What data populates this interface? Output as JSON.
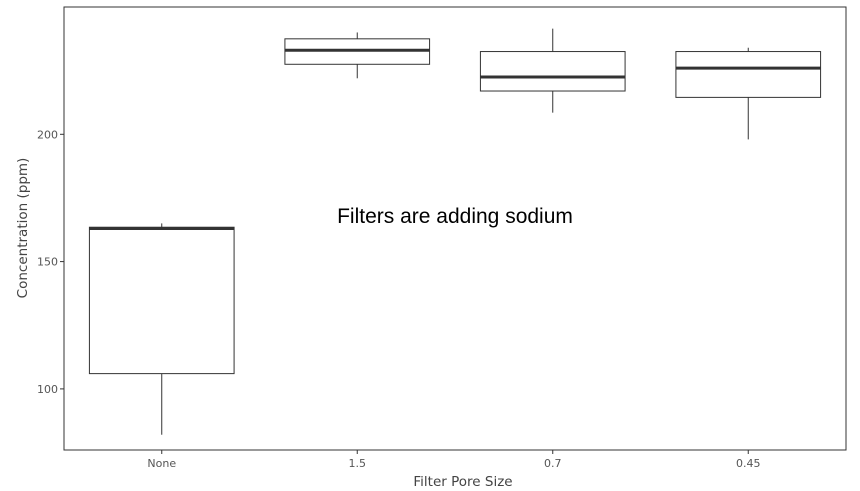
{
  "chart_data": {
    "type": "boxplot",
    "title": "",
    "xlabel": "Filter Pore Size",
    "ylabel": "Concentration (ppm)",
    "categories": [
      "None",
      "1.5",
      "0.7",
      "0.45"
    ],
    "boxes": [
      {
        "category": "None",
        "whisker_low": 82,
        "q1": 106,
        "median": 163,
        "q3": 163.5,
        "whisker_high": 165
      },
      {
        "category": "1.5",
        "whisker_low": 222,
        "q1": 227.5,
        "median": 233,
        "q3": 237.5,
        "whisker_high": 240
      },
      {
        "category": "0.7",
        "whisker_low": 208.5,
        "q1": 217,
        "median": 222.5,
        "q3": 232.5,
        "whisker_high": 241.5
      },
      {
        "category": "0.45",
        "whisker_low": 198,
        "q1": 214.5,
        "median": 226,
        "q3": 232.5,
        "whisker_high": 234
      }
    ],
    "y_ticks": [
      100,
      150,
      200
    ],
    "ylim": [
      76,
      250
    ],
    "grid": false,
    "legend": "none",
    "annotations": [
      {
        "text": "Filters are adding sodium",
        "x": "1.5",
        "y": 168
      }
    ]
  }
}
